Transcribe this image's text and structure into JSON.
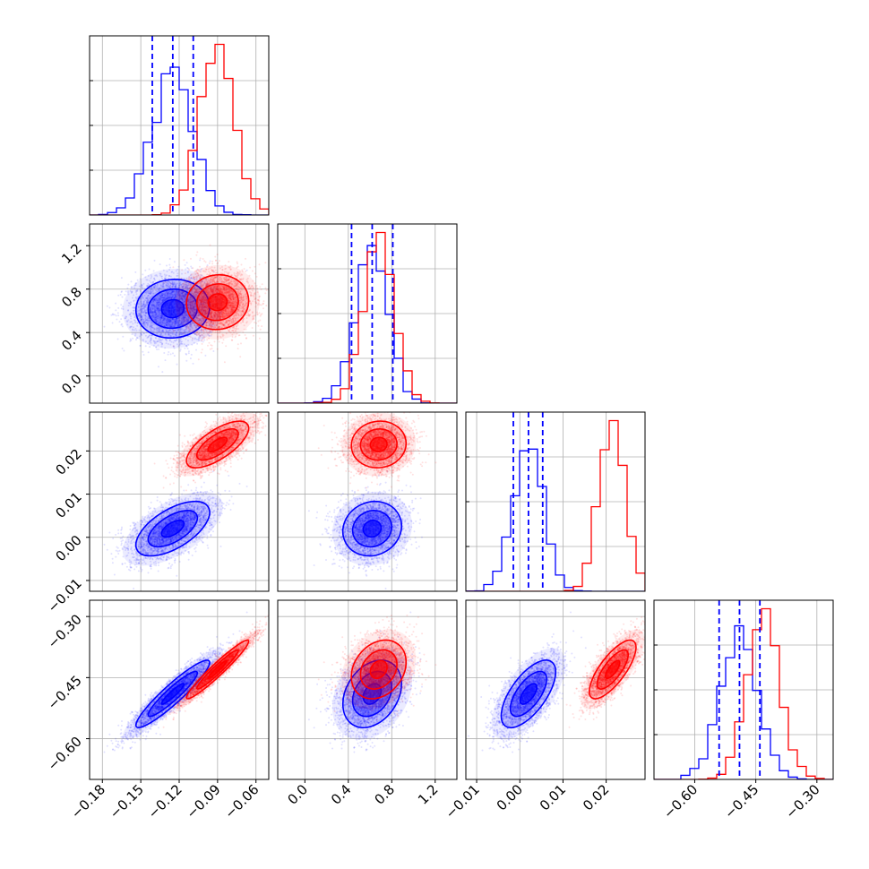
{
  "colors": {
    "blue": "#0000ff",
    "red": "#ff0000"
  },
  "chart_data": {
    "type": "corner",
    "grid": true,
    "parameters": [
      {
        "range": [
          -0.19,
          -0.05
        ],
        "ticks": [
          "-0.18",
          "-0.15",
          "-0.12",
          "-0.09",
          "-0.06"
        ],
        "tick_values": [
          -0.18,
          -0.15,
          -0.12,
          -0.09,
          -0.06
        ]
      },
      {
        "range": [
          -0.25,
          1.4
        ],
        "ticks": [
          "0.0",
          "0.4",
          "0.8",
          "1.2"
        ],
        "tick_values": [
          0.0,
          0.4,
          0.8,
          1.2
        ]
      },
      {
        "range": [
          -0.0125,
          0.029
        ],
        "ticks": [
          "-0.01",
          "0.00",
          "0.01",
          "0.02"
        ],
        "tick_values": [
          -0.01,
          0.0,
          0.01,
          0.02
        ]
      },
      {
        "range": [
          -0.7,
          -0.26
        ],
        "ticks": [
          "-0.60",
          "-0.45",
          "-0.30"
        ],
        "tick_values": [
          -0.6,
          -0.45,
          -0.3
        ]
      }
    ],
    "series": [
      {
        "color": "blue",
        "mean": [
          -0.125,
          0.62,
          0.002,
          -0.49
        ],
        "sd": [
          0.016,
          0.15,
          0.0035,
          0.046
        ],
        "corr": [
          [
            1,
            0.05,
            0.6,
            0.93
          ],
          [
            0.05,
            1,
            0.1,
            0.3
          ],
          [
            0.6,
            0.1,
            1,
            0.65
          ],
          [
            0.93,
            0.3,
            0.65,
            1
          ]
        ],
        "quantiles": [
          [
            -0.141,
            -0.125,
            -0.109
          ],
          [
            0.43,
            0.62,
            0.81
          ],
          [
            -0.0015,
            0.002,
            0.0053
          ],
          [
            -0.54,
            -0.49,
            -0.44
          ]
        ]
      },
      {
        "color": "red",
        "mean": [
          -0.09,
          0.68,
          0.0215,
          -0.43
        ],
        "sd": [
          0.0135,
          0.14,
          0.003,
          0.04
        ],
        "corr": [
          [
            1,
            0.05,
            0.7,
            0.96
          ],
          [
            0.05,
            1,
            0.05,
            0.25
          ],
          [
            0.7,
            0.05,
            1,
            0.75
          ],
          [
            0.96,
            0.25,
            0.75,
            1
          ]
        ],
        "quantiles": null
      }
    ]
  }
}
